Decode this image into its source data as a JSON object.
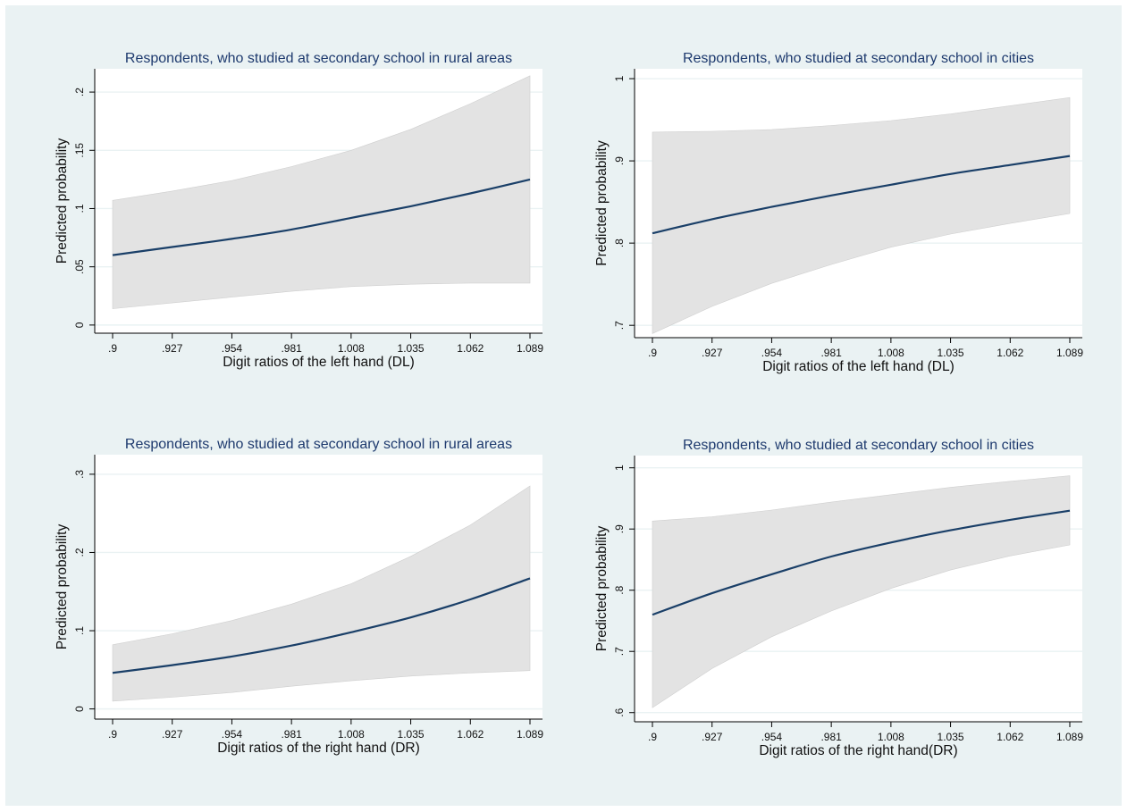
{
  "chart_data": [
    {
      "type": "line",
      "title": "Respondents, who studied at secondary school in rural areas",
      "xlabel": "Digit ratios of the left hand (DL)",
      "ylabel": "Predicted probability",
      "x_ticks": [
        ".9",
        ".927",
        ".954",
        ".981",
        "1.008",
        "1.035",
        "1.062",
        "1.089"
      ],
      "x": [
        0.9,
        0.927,
        0.954,
        0.981,
        1.008,
        1.035,
        1.062,
        1.089
      ],
      "y_ticks": [
        "0",
        ".05",
        ".1",
        ".15",
        ".2"
      ],
      "y_tick_values": [
        0,
        0.05,
        0.1,
        0.15,
        0.2
      ],
      "xlim": [
        0.9,
        1.089
      ],
      "ylim": [
        -0.007,
        0.22
      ],
      "grid": true,
      "series": [
        {
          "prediction": [
            0.06,
            0.067,
            0.074,
            0.082,
            0.092,
            0.102,
            0.113,
            0.125
          ],
          "lower": [
            0.014,
            0.019,
            0.024,
            0.029,
            0.033,
            0.035,
            0.036,
            0.036
          ],
          "upper": [
            0.107,
            0.115,
            0.124,
            0.136,
            0.15,
            0.168,
            0.19,
            0.214
          ]
        }
      ]
    },
    {
      "type": "line",
      "title": "Respondents, who studied at secondary school in cities",
      "xlabel": "Digit ratios of the left hand (DL)",
      "ylabel": "Predicted probability",
      "x_ticks": [
        ".9",
        ".927",
        ".954",
        ".981",
        "1.008",
        "1.035",
        "1.062",
        "1.089"
      ],
      "x": [
        0.9,
        0.927,
        0.954,
        0.981,
        1.008,
        1.035,
        1.062,
        1.089
      ],
      "y_ticks": [
        ".7",
        ".8",
        ".9",
        "1"
      ],
      "y_tick_values": [
        0.7,
        0.8,
        0.9,
        1.0
      ],
      "xlim": [
        0.9,
        1.089
      ],
      "ylim": [
        0.685,
        1.012
      ],
      "grid": true,
      "series": [
        {
          "prediction": [
            0.812,
            0.829,
            0.844,
            0.858,
            0.871,
            0.884,
            0.895,
            0.906
          ],
          "lower": [
            0.69,
            0.723,
            0.751,
            0.774,
            0.795,
            0.811,
            0.824,
            0.836
          ],
          "upper": [
            0.935,
            0.936,
            0.938,
            0.943,
            0.949,
            0.957,
            0.967,
            0.977
          ]
        }
      ]
    },
    {
      "type": "line",
      "title": "Respondents, who studied at secondary school in rural areas",
      "xlabel": "Digit ratios of the right hand (DR)",
      "ylabel": "Predicted probability",
      "x_ticks": [
        ".9",
        ".927",
        ".954",
        ".981",
        "1.008",
        "1.035",
        "1.062",
        "1.089"
      ],
      "x": [
        0.9,
        0.927,
        0.954,
        0.981,
        1.008,
        1.035,
        1.062,
        1.089
      ],
      "y_ticks": [
        "0",
        ".1",
        ".2",
        ".3"
      ],
      "y_tick_values": [
        0,
        0.1,
        0.2,
        0.3
      ],
      "xlim": [
        0.9,
        1.089
      ],
      "ylim": [
        -0.013,
        0.325
      ],
      "grid": true,
      "series": [
        {
          "prediction": [
            0.046,
            0.056,
            0.067,
            0.081,
            0.098,
            0.117,
            0.14,
            0.167
          ],
          "lower": [
            0.01,
            0.015,
            0.021,
            0.029,
            0.036,
            0.042,
            0.046,
            0.049
          ],
          "upper": [
            0.082,
            0.096,
            0.113,
            0.134,
            0.16,
            0.195,
            0.235,
            0.285
          ]
        }
      ]
    },
    {
      "type": "line",
      "title": "Respondents, who studied at secondary school in cities",
      "xlabel": "Digit ratios of the right hand(DR)",
      "ylabel": "Predicted probability",
      "x_ticks": [
        ".9",
        ".927",
        ".954",
        ".981",
        "1.008",
        "1.035",
        "1.062",
        "1.089"
      ],
      "x": [
        0.9,
        0.927,
        0.954,
        0.981,
        1.008,
        1.035,
        1.062,
        1.089
      ],
      "y_ticks": [
        ".6",
        ".7",
        ".8",
        ".9",
        "1"
      ],
      "y_tick_values": [
        0.6,
        0.7,
        0.8,
        0.9,
        1.0
      ],
      "xlim": [
        0.9,
        1.089
      ],
      "ylim": [
        0.585,
        1.02
      ],
      "grid": true,
      "series": [
        {
          "prediction": [
            0.76,
            0.795,
            0.826,
            0.855,
            0.878,
            0.898,
            0.915,
            0.93
          ],
          "lower": [
            0.608,
            0.672,
            0.724,
            0.766,
            0.803,
            0.833,
            0.856,
            0.874
          ],
          "upper": [
            0.913,
            0.92,
            0.931,
            0.944,
            0.956,
            0.968,
            0.978,
            0.987
          ]
        }
      ]
    }
  ],
  "colors": {
    "background": "#eaf2f3",
    "plot_area": "#ffffff",
    "confidence_band": "#e3e3e3",
    "prediction_line": "#1a3f68",
    "title_text": "#1e3a6e"
  }
}
